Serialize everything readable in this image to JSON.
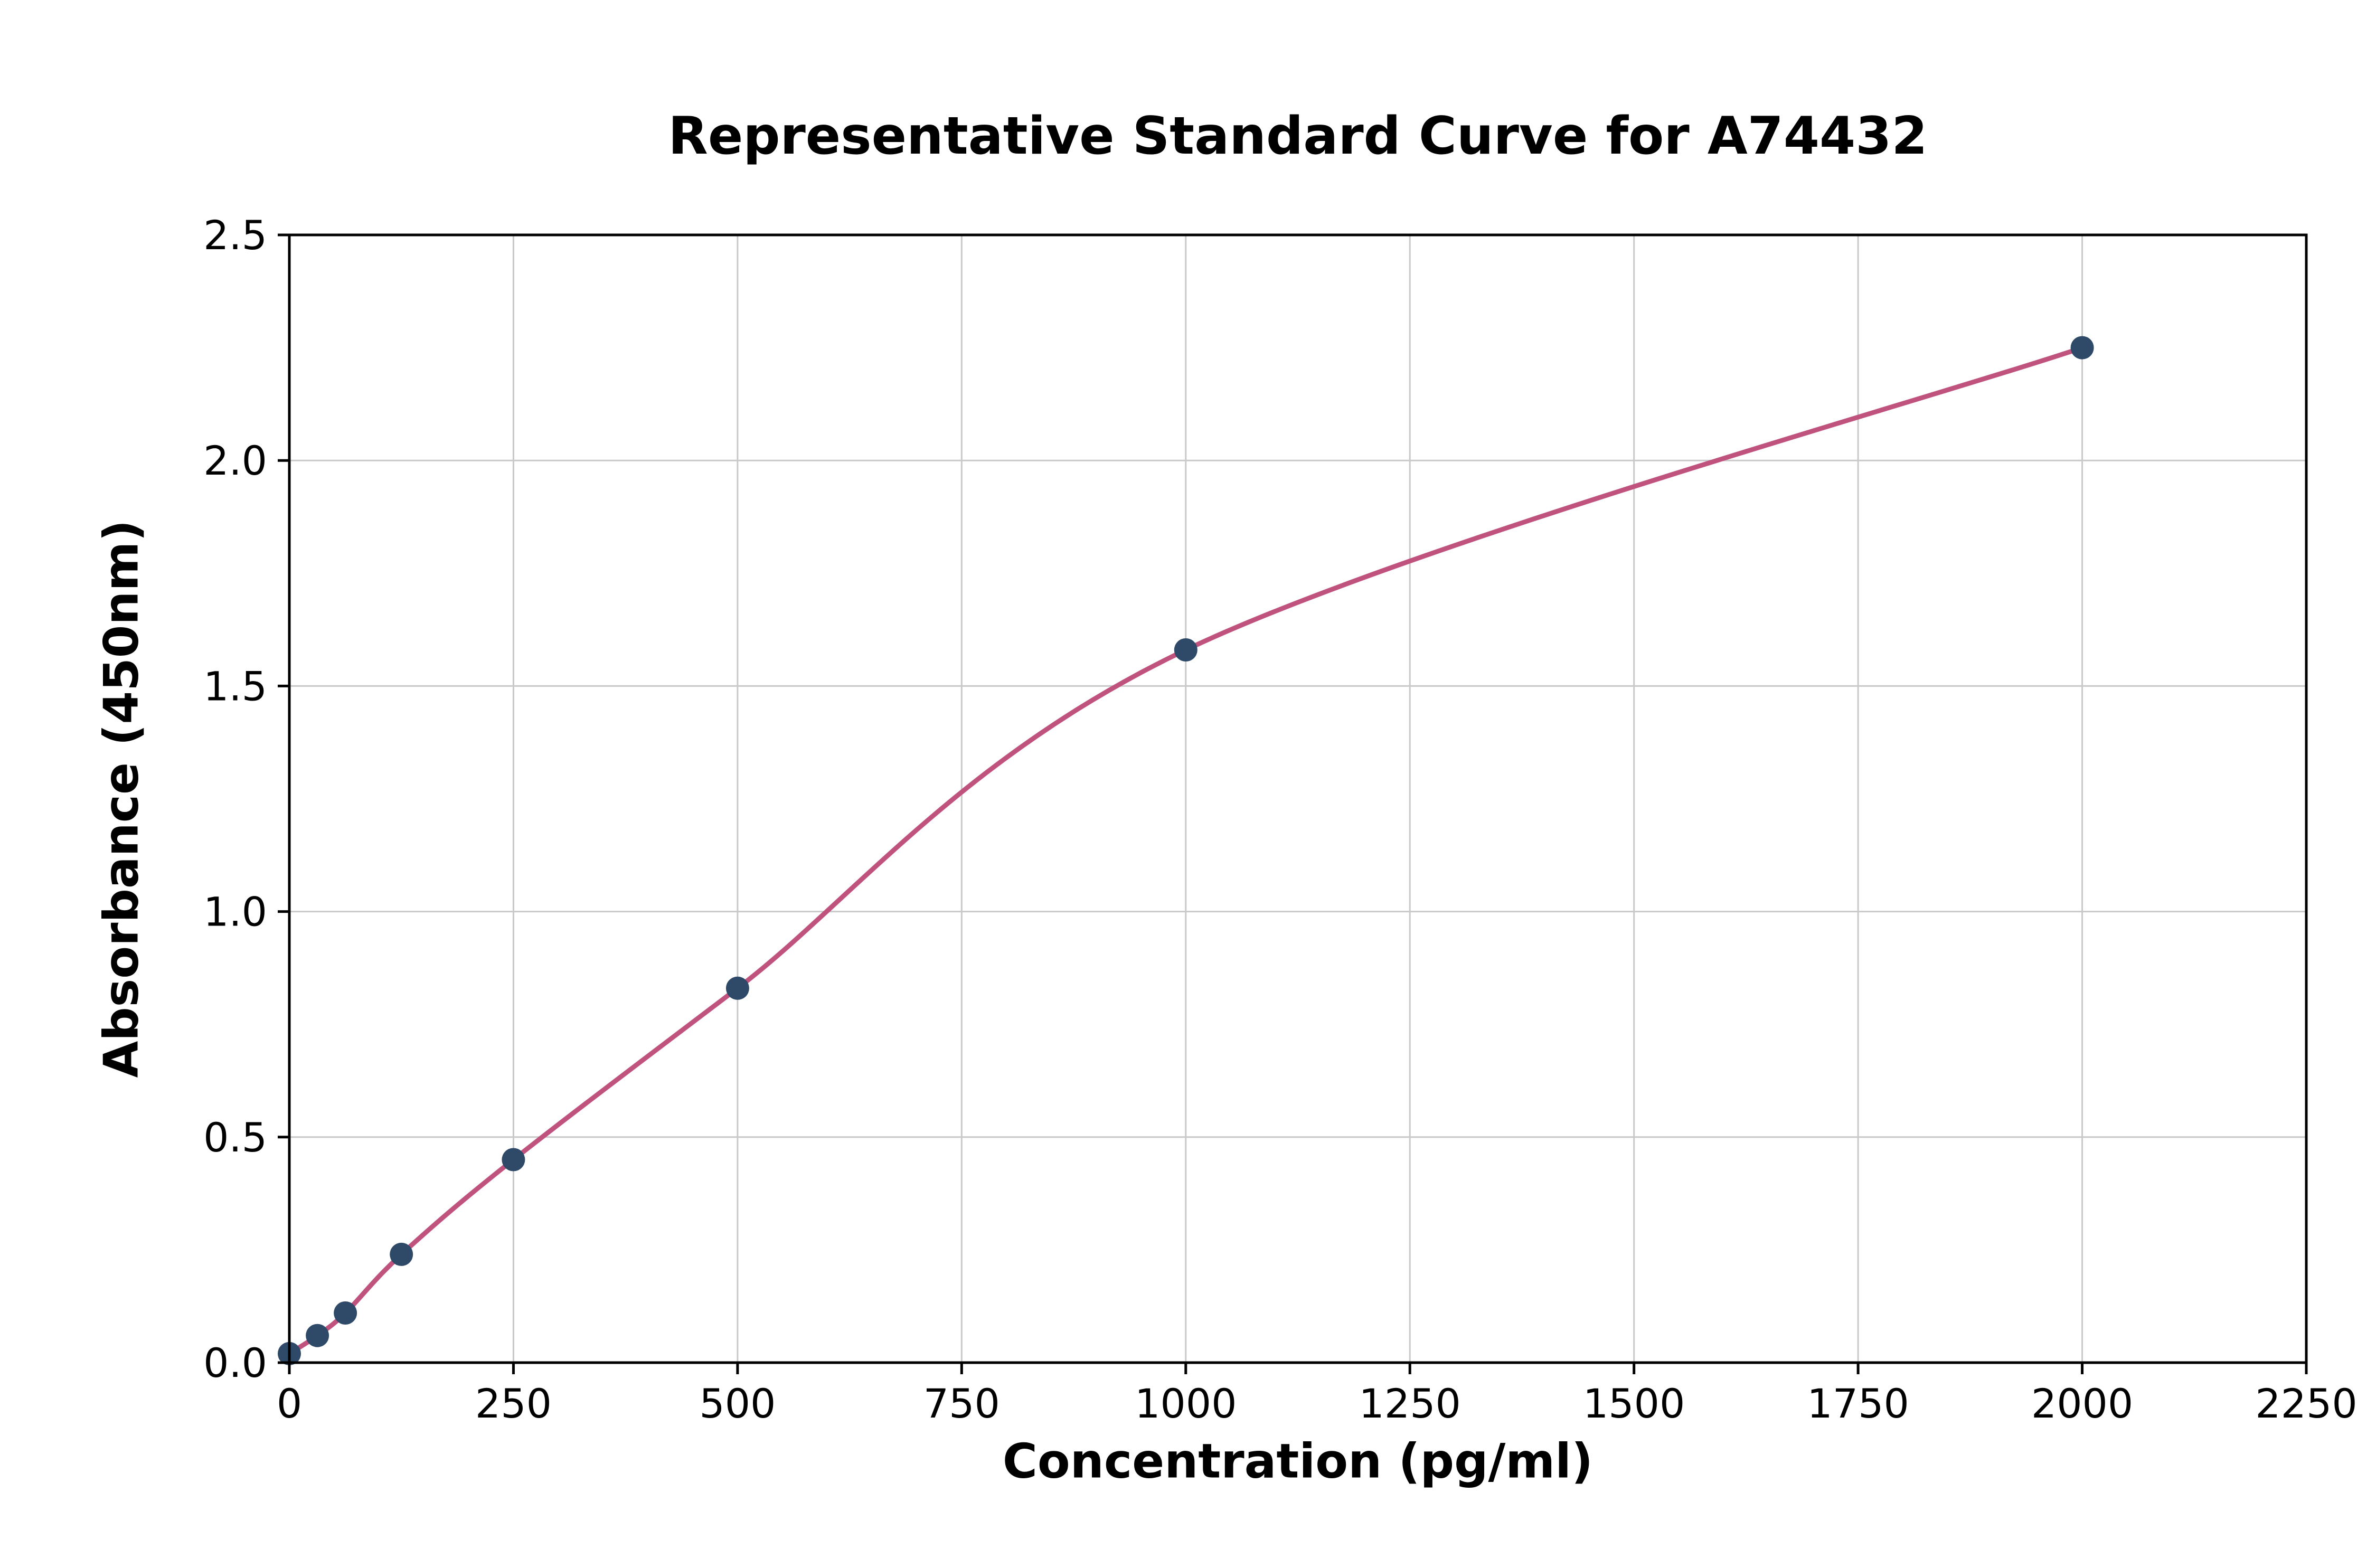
{
  "chart_data": {
    "type": "scatter",
    "title": "Representative Standard Curve for A74432",
    "xlabel": "Concentration (pg/ml)",
    "ylabel": "Absorbance (450nm)",
    "xlim": [
      0,
      2250
    ],
    "ylim": [
      0,
      2.5
    ],
    "grid": true,
    "legend": "none",
    "x_ticks": {
      "values": [
        0,
        250,
        500,
        750,
        1000,
        1250,
        1500,
        1750,
        2000,
        2250
      ],
      "labels": [
        "0",
        "250",
        "500",
        "750",
        "1000",
        "1250",
        "1500",
        "1750",
        "2000",
        "2250"
      ]
    },
    "y_ticks": {
      "values": [
        0.0,
        0.5,
        1.0,
        1.5,
        2.0,
        2.5
      ],
      "labels": [
        "0.0",
        "0.5",
        "1.0",
        "1.5",
        "2.0",
        "2.5"
      ]
    },
    "series": [
      {
        "name": "standard-points",
        "type": "scatter",
        "x": [
          0,
          31.25,
          62.5,
          125,
          250,
          500,
          1000,
          2000
        ],
        "y": [
          0.02,
          0.06,
          0.11,
          0.24,
          0.45,
          0.83,
          1.58,
          2.25
        ]
      },
      {
        "name": "fit-curve",
        "type": "line",
        "x": [
          0,
          31.25,
          62.5,
          125,
          250,
          500,
          1000,
          2000
        ],
        "y": [
          0.02,
          0.06,
          0.11,
          0.24,
          0.45,
          0.83,
          1.58,
          2.25
        ]
      }
    ],
    "colors": {
      "point": "#2e4a68",
      "curve": "#c0527e",
      "grid": "#c9c9c9",
      "axis": "#000000",
      "background": "#ffffff",
      "tick_text": "#000000"
    }
  }
}
